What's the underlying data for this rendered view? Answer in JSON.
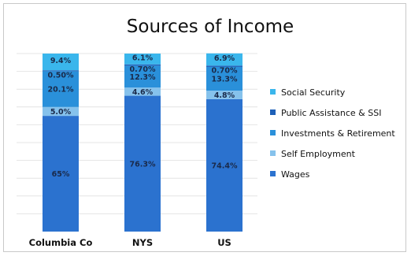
{
  "chart_data": {
    "type": "bar",
    "stacked": true,
    "title": "Sources of Income",
    "xlabel": "",
    "ylabel": "",
    "ylim": [
      0,
      100
    ],
    "grid": true,
    "legend_position": "right",
    "categories": [
      "Columbia Co",
      "NYS",
      "US"
    ],
    "series": [
      {
        "name": "Wages",
        "color": "#2b72cf",
        "values": [
          65,
          76.3,
          74.4
        ],
        "labels": [
          "65%",
          "76.3%",
          "74.4%"
        ]
      },
      {
        "name": "Self Employment",
        "color": "#86c2ec",
        "values": [
          5.0,
          4.6,
          4.8
        ],
        "labels": [
          "5.0%",
          "4.6%",
          "4.8%"
        ]
      },
      {
        "name": "Investments & Retirement",
        "color": "#2a90da",
        "values": [
          20.1,
          12.3,
          13.3
        ],
        "labels": [
          "20.1%",
          "12.3%",
          "13.3%"
        ]
      },
      {
        "name": "Public Assistance & SSI",
        "color": "#1e60b8",
        "values": [
          0.5,
          0.7,
          0.7
        ],
        "labels": [
          "0.50%",
          "0.70%",
          "0.70%"
        ]
      },
      {
        "name": "Social Security",
        "color": "#3ab6ec",
        "values": [
          9.4,
          6.1,
          6.9
        ],
        "labels": [
          "9.4%",
          "6.1%",
          "6.9%"
        ]
      }
    ],
    "legend_order": [
      "Social Security",
      "Public Assistance & SSI",
      "Investments & Retirement",
      "Self Employment",
      "Wages"
    ]
  }
}
